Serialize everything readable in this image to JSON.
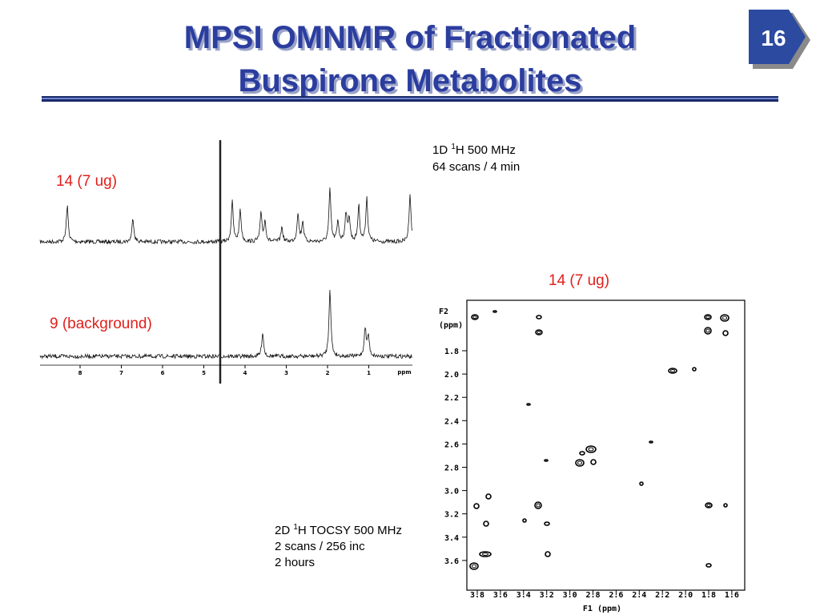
{
  "title": [
    "MPSI OMNMR of Fractionated",
    "Buspirone Metabolites"
  ],
  "slide_number": "16",
  "spectrum_1d": {
    "labels": [
      "14 (7 ug)",
      "9 (background)"
    ],
    "axis_ticks": [
      "8",
      "7",
      "6",
      "5",
      "4",
      "3",
      "2",
      "1"
    ],
    "axis_unit": "ppm",
    "caption": {
      "prefix": "1D ",
      "sup": "1",
      "rest": "H 500 MHz",
      "line2": "64 scans / 4 min"
    }
  },
  "spectrum_2d": {
    "label": "14 (7 ug)",
    "f2_label": [
      "F2",
      "(ppm)"
    ],
    "f2_ticks": [
      "1.8",
      "2.0",
      "2.2",
      "2.4",
      "2.6",
      "2.8",
      "3.0",
      "3.2",
      "3.4",
      "3.6"
    ],
    "f1_ticks": [
      "3.8",
      "3.6",
      "3.4",
      "3.2",
      "3.0",
      "2.8",
      "2.6",
      "2.4",
      "2.2",
      "2.0",
      "1.8",
      "1.6"
    ],
    "f1_label": "F1 (ppm)",
    "caption": {
      "prefix": "2D ",
      "sup": "1",
      "rest": "H TOCSY 500 MHz",
      "line2": "2 scans / 256 inc",
      "line3": "2 hours"
    }
  }
}
